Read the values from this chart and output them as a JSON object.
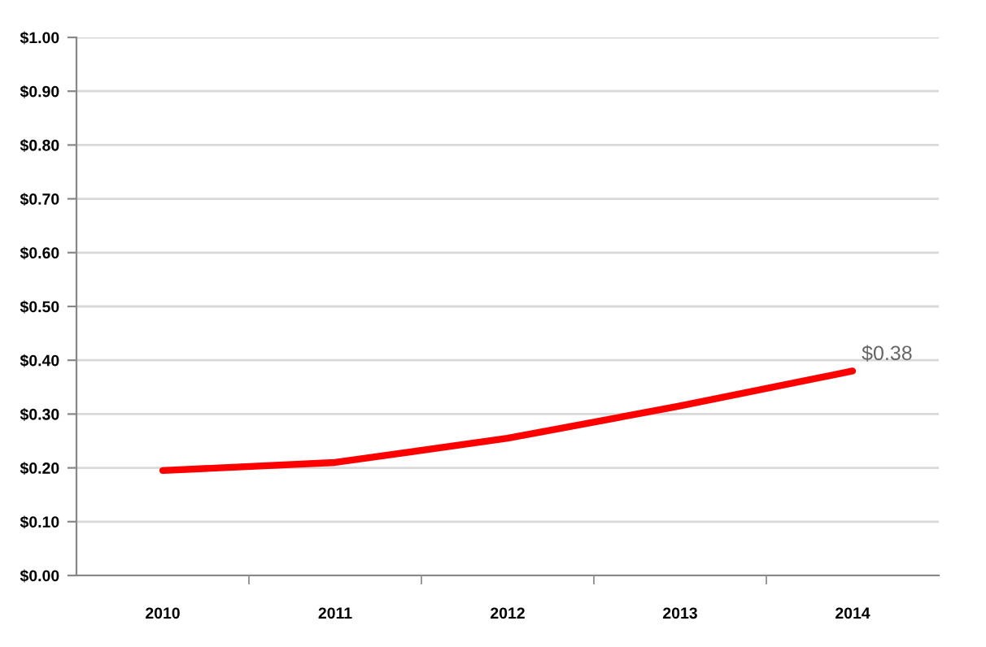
{
  "chart_data": {
    "type": "line",
    "categories": [
      "2010",
      "2011",
      "2012",
      "2013",
      "2014"
    ],
    "series": [
      {
        "color": "#ff0000",
        "values": [
          0.195,
          0.21,
          0.255,
          0.315,
          0.38
        ],
        "value_labels": [
          null,
          null,
          null,
          null,
          "$0.38"
        ]
      }
    ],
    "ylim": [
      0,
      1
    ],
    "yticks": [
      {
        "value": 0,
        "label": "$0.00"
      },
      {
        "value": 0.1,
        "label": "$0.10"
      },
      {
        "value": 0.2,
        "label": "$0.20"
      },
      {
        "value": 0.3,
        "label": "$0.30"
      },
      {
        "value": 0.4,
        "label": "$0.40"
      },
      {
        "value": 0.5,
        "label": "$0.50"
      },
      {
        "value": 0.6,
        "label": "$0.60"
      },
      {
        "value": 0.7,
        "label": "$0.70"
      },
      {
        "value": 0.8,
        "label": "$0.80"
      },
      {
        "value": 0.9,
        "label": "$0.90"
      },
      {
        "value": 1,
        "label": "$1.00"
      }
    ],
    "grid": "y",
    "marker": "none",
    "line_style": "solid",
    "legend": false
  }
}
